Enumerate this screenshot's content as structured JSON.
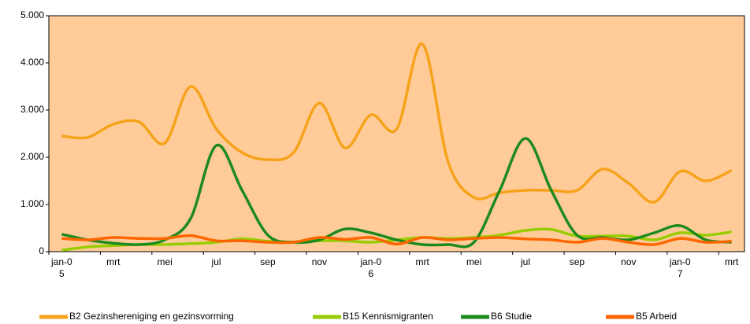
{
  "chart_data": {
    "type": "line",
    "categories": [
      "jan-05",
      null,
      "mrt",
      null,
      "mei",
      null,
      "jul",
      null,
      "sep",
      null,
      "nov",
      null,
      "jan-06",
      null,
      "mrt",
      null,
      "mei",
      null,
      "jul",
      null,
      "sep",
      null,
      "nov",
      null,
      "jan-07",
      null,
      "mrt"
    ],
    "series": [
      {
        "name": "B2 Gezinshereniging en gezinsvorming",
        "color": "#f7a21b",
        "values": [
          2450,
          2420,
          2700,
          2750,
          2300,
          3500,
          2600,
          2100,
          1950,
          2100,
          3150,
          2200,
          2900,
          2600,
          4400,
          1900,
          1150,
          1250,
          1300,
          1300,
          1300,
          1750,
          1450,
          1050,
          1700,
          1500,
          1720
        ]
      },
      {
        "name": "B15 Kennismigranten",
        "color": "#99cc00",
        "values": [
          30,
          100,
          130,
          150,
          150,
          170,
          200,
          270,
          220,
          200,
          230,
          230,
          200,
          250,
          300,
          280,
          300,
          350,
          450,
          470,
          330,
          330,
          330,
          250,
          400,
          350,
          420
        ]
      },
      {
        "name": "B6 Studie",
        "color": "#1e8a1e",
        "values": [
          370,
          250,
          180,
          150,
          250,
          700,
          2250,
          1300,
          350,
          200,
          250,
          480,
          400,
          250,
          150,
          150,
          200,
          1300,
          2400,
          1300,
          350,
          300,
          250,
          400,
          550,
          250,
          200
        ]
      },
      {
        "name": "B5 Arbeid",
        "color": "#ff6600",
        "values": [
          280,
          250,
          300,
          280,
          280,
          340,
          230,
          230,
          200,
          200,
          300,
          260,
          300,
          160,
          300,
          250,
          280,
          300,
          270,
          250,
          200,
          280,
          200,
          150,
          280,
          200,
          220
        ]
      }
    ],
    "ylim": [
      0,
      5000
    ],
    "yticks": [
      0,
      {
        "value": 1000,
        "label": "1.000"
      },
      {
        "value": 2000,
        "label": "2.000"
      },
      {
        "value": 3000,
        "label": "3.000"
      },
      {
        "value": 4000,
        "label": "4.000"
      },
      {
        "value": 5000,
        "label": "5.000"
      }
    ],
    "grid": false,
    "plot_background": "#ffcc99",
    "legend": "bottom"
  }
}
